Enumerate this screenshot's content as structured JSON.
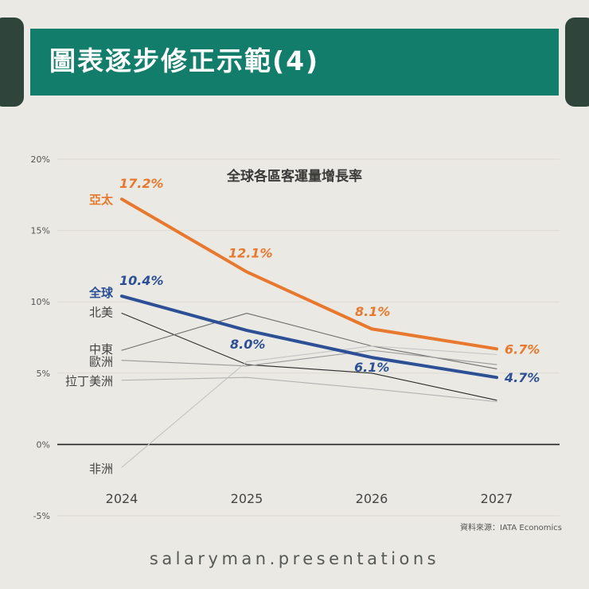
{
  "header": {
    "title": "圖表逐步修正示範(4)",
    "color": "#137d6b"
  },
  "footer": {
    "brand": "salaryman.presentations"
  },
  "chart_data": {
    "type": "line",
    "title": "全球各區客運量增長率",
    "source": "資料來源：IATA Economics",
    "categories": [
      "2024",
      "2025",
      "2026",
      "2027"
    ],
    "y_ticks": [
      "20%",
      "15%",
      "10%",
      "5%",
      "0%",
      "-5%"
    ],
    "ylim": [
      -5,
      20
    ],
    "series": [
      {
        "name": "亞太",
        "values": [
          17.2,
          12.1,
          8.1,
          6.7
        ],
        "color": "#e8782e",
        "emphasis": true,
        "labels": [
          "17.2%",
          "12.1%",
          "8.1%",
          "6.7%"
        ]
      },
      {
        "name": "全球",
        "values": [
          10.4,
          8.0,
          6.1,
          4.7
        ],
        "color": "#2c4f96",
        "emphasis": true,
        "labels": [
          "10.4%",
          "8.0%",
          "6.1%",
          "4.7%"
        ]
      },
      {
        "name": "北美",
        "values": [
          9.2,
          5.6,
          5.0,
          3.1
        ],
        "color": "#2a2a2a",
        "emphasis": false
      },
      {
        "name": "中東",
        "values": [
          6.6,
          9.2,
          6.9,
          5.3
        ],
        "color": "#6e6e6e",
        "emphasis": false
      },
      {
        "name": "歐洲",
        "values": [
          5.9,
          5.5,
          6.6,
          5.6
        ],
        "color": "#9a9a9a",
        "emphasis": false
      },
      {
        "name": "拉丁美洲",
        "values": [
          4.5,
          4.7,
          3.9,
          3.0
        ],
        "color": "#b0b0b0",
        "emphasis": false
      },
      {
        "name": "非洲",
        "values": [
          -1.6,
          5.8,
          6.9,
          6.3
        ],
        "color": "#c4c4c4",
        "emphasis": false
      }
    ]
  }
}
